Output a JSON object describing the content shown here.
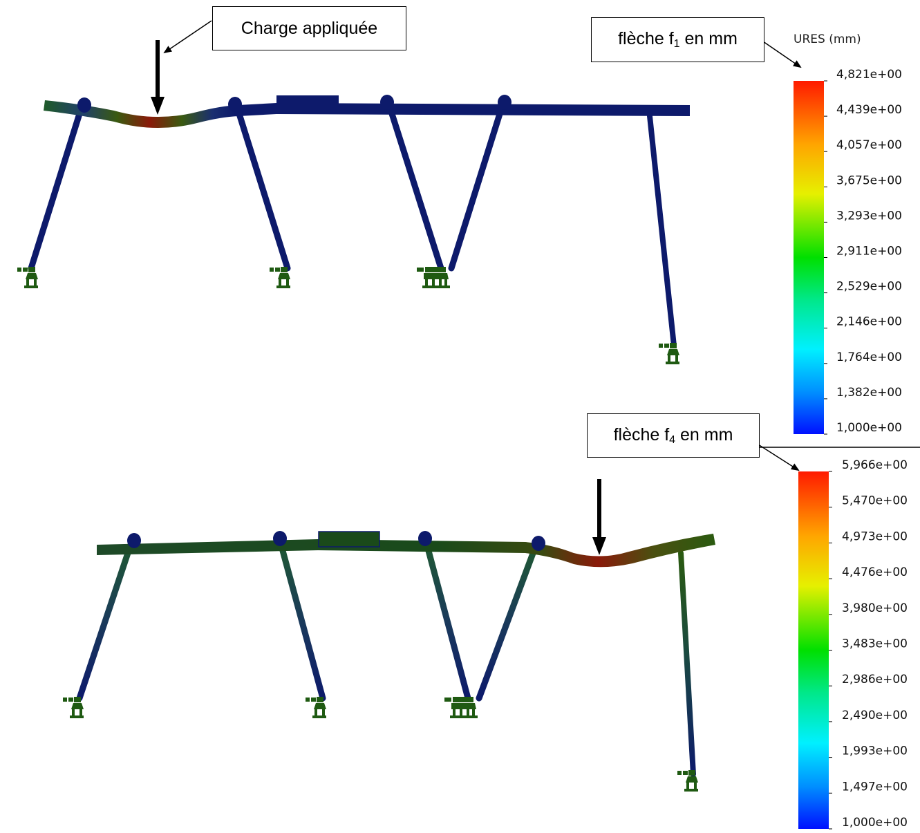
{
  "annotations": {
    "load_label": "Charge appliquée",
    "f1_label": "flèche f",
    "f1_sub": "1",
    "f4_label": "flèche f",
    "f4_sub": "4",
    "unit_suffix": "en mm"
  },
  "legend_title": "URES (mm)",
  "scale1": {
    "ticks": [
      "4,821e+00",
      "4,439e+00",
      "4,057e+00",
      "3,675e+00",
      "3,293e+00",
      "2,911e+00",
      "2,529e+00",
      "2,146e+00",
      "1,764e+00",
      "1,382e+00",
      "1,000e+00"
    ]
  },
  "scale2": {
    "ticks": [
      "5,966e+00",
      "5,470e+00",
      "4,973e+00",
      "4,476e+00",
      "3,980e+00",
      "3,483e+00",
      "2,986e+00",
      "2,490e+00",
      "1,993e+00",
      "1,497e+00",
      "1,000e+00"
    ]
  },
  "colors": {
    "beam_dark": "#0d1a6b",
    "support_green": "#1f5a12",
    "max_red": "#8a1a0a"
  }
}
